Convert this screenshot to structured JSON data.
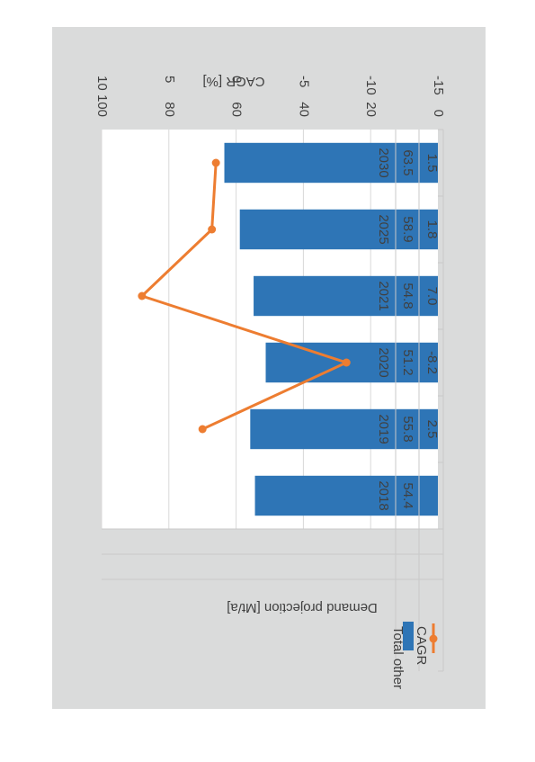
{
  "chart_data": {
    "type": "bar",
    "categories": [
      "2018",
      "2019",
      "2020",
      "2021",
      "2025",
      "2030"
    ],
    "series": [
      {
        "name": "Total other",
        "type": "bar",
        "axis": "left",
        "values": [
          54.4,
          55.8,
          51.2,
          54.8,
          58.9,
          63.5
        ],
        "labels": [
          "54.4",
          "55.8",
          "51.2",
          "54.8",
          "58.9",
          "63.5"
        ],
        "color": "#2E75B6"
      },
      {
        "name": "CAGR",
        "type": "line",
        "axis": "right",
        "values": [
          null,
          2.5,
          -8.2,
          7.0,
          1.8,
          1.5
        ],
        "labels": [
          "",
          "2.5",
          "-8.2",
          "7.0",
          "1.8",
          "1.5"
        ],
        "color": "#ED7D31"
      }
    ],
    "ylabel_left": "Demand projection [Mt/a]",
    "ylabel_right": "CAGR [%]",
    "ylim_left": [
      0,
      100
    ],
    "ylim_right": [
      -15,
      10
    ],
    "yticks_left": [
      "0",
      "20",
      "40",
      "60",
      "80",
      "100"
    ],
    "yticks_right": [
      "-15",
      "-10",
      "-5",
      "0",
      "5",
      "10"
    ],
    "grid": true,
    "legend": "data-table",
    "orientation": "rotated-180"
  }
}
